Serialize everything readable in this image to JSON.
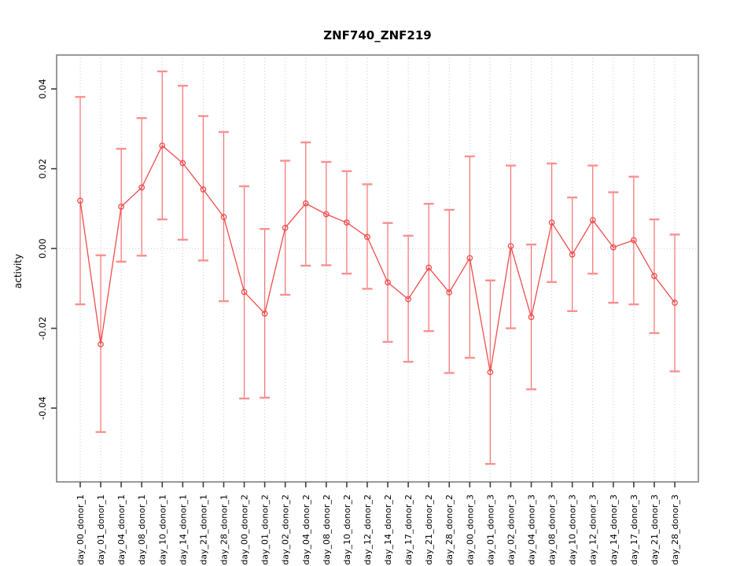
{
  "chart_data": {
    "type": "line",
    "title": "ZNF740_ZNF219",
    "xlabel": "",
    "ylabel": "activity",
    "legend": null,
    "grid": {
      "vertical_dotted_per_category": true,
      "horizontal_zero_line_dotted": true
    },
    "marker": "open-circle",
    "error_bars": true,
    "categories": [
      "day_00_donor_1",
      "day_01_donor_1",
      "day_04_donor_1",
      "day_08_donor_1",
      "day_10_donor_1",
      "day_14_donor_1",
      "day_21_donor_1",
      "day_28_donor_1",
      "day_00_donor_2",
      "day_01_donor_2",
      "day_02_donor_2",
      "day_04_donor_2",
      "day_08_donor_2",
      "day_10_donor_2",
      "day_12_donor_2",
      "day_14_donor_2",
      "day_17_donor_2",
      "day_21_donor_2",
      "day_28_donor_2",
      "day_00_donor_3",
      "day_01_donor_3",
      "day_02_donor_3",
      "day_04_donor_3",
      "day_08_donor_3",
      "day_10_donor_3",
      "day_12_donor_3",
      "day_14_donor_3",
      "day_17_donor_3",
      "day_21_donor_3",
      "day_28_donor_3"
    ],
    "series": [
      {
        "name": "activity",
        "values": [
          0.012,
          -0.024,
          0.0105,
          0.0153,
          0.0258,
          0.0214,
          0.0148,
          0.0079,
          -0.0109,
          -0.0163,
          0.0052,
          0.0113,
          0.0086,
          0.0065,
          0.0029,
          -0.0085,
          -0.0127,
          -0.0048,
          -0.011,
          -0.0024,
          -0.031,
          0.0006,
          -0.0172,
          0.0065,
          -0.0015,
          0.0071,
          0.0003,
          0.0021,
          -0.0069,
          -0.0136
        ],
        "upper": [
          0.038,
          -0.0017,
          0.025,
          0.0327,
          0.0444,
          0.0408,
          0.0332,
          0.0292,
          0.0156,
          0.0049,
          0.022,
          0.0266,
          0.0217,
          0.0194,
          0.0161,
          0.0064,
          0.0032,
          0.0112,
          0.0097,
          0.0231,
          -0.008,
          0.0208,
          0.001,
          0.0213,
          0.0128,
          0.0208,
          0.0141,
          0.018,
          0.0073,
          0.0035
        ],
        "lower": [
          -0.014,
          -0.046,
          -0.0033,
          -0.0018,
          0.0073,
          0.0022,
          -0.003,
          -0.0132,
          -0.0376,
          -0.0374,
          -0.0116,
          -0.0043,
          -0.0042,
          -0.0063,
          -0.0101,
          -0.0234,
          -0.0284,
          -0.0207,
          -0.0312,
          -0.0274,
          -0.054,
          -0.02,
          -0.0353,
          -0.0084,
          -0.0157,
          -0.0063,
          -0.0136,
          -0.014,
          -0.0212,
          -0.0308
        ]
      }
    ],
    "ylim": [
      -0.0585,
      0.0485
    ],
    "yticks": [
      0.04,
      0.02,
      0.0,
      -0.02,
      -0.04
    ],
    "ytick_labels": [
      "0.04",
      "0.02",
      "0.00",
      "-0.02",
      "-0.04"
    ],
    "colors": {
      "series_line": "#f04c4c",
      "marker": "#f04c4c",
      "error_bar": "#f57070",
      "error_cap": "#f99090",
      "grid": "#c9c9c9",
      "frame": "#808080",
      "axis_tick": "#3d3d3d",
      "text": "#000000"
    }
  }
}
